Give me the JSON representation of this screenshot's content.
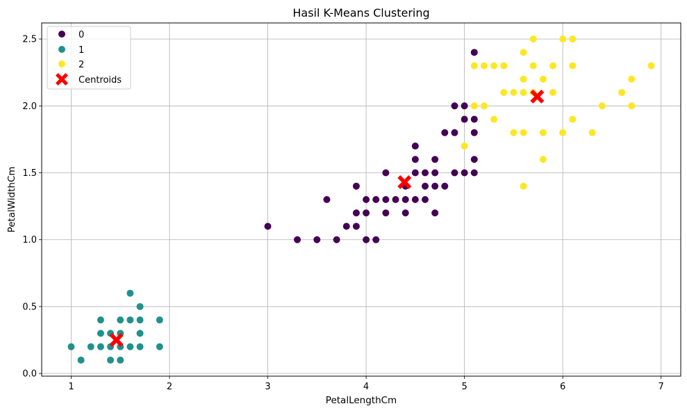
{
  "chart_data": {
    "type": "scatter",
    "title": "Hasil K-Means Clustering",
    "xlabel": "PetalLengthCm",
    "ylabel": "PetalWidthCm",
    "xlim": [
      0.7,
      7.2
    ],
    "ylim": [
      -0.02,
      2.62
    ],
    "xticks": [
      1,
      2,
      3,
      4,
      5,
      6,
      7
    ],
    "yticks": [
      0.0,
      0.5,
      1.0,
      1.5,
      2.0,
      2.5
    ],
    "grid": true,
    "legend_position": "top-left",
    "series": [
      {
        "name": "0",
        "color": "#440154",
        "points": [
          [
            3.0,
            1.1
          ],
          [
            3.3,
            1.0
          ],
          [
            3.5,
            1.0
          ],
          [
            3.6,
            1.3
          ],
          [
            3.7,
            1.0
          ],
          [
            3.8,
            1.1
          ],
          [
            3.9,
            1.1
          ],
          [
            3.9,
            1.2
          ],
          [
            3.9,
            1.4
          ],
          [
            4.0,
            1.0
          ],
          [
            4.0,
            1.2
          ],
          [
            4.0,
            1.3
          ],
          [
            4.1,
            1.0
          ],
          [
            4.1,
            1.3
          ],
          [
            4.2,
            1.2
          ],
          [
            4.2,
            1.3
          ],
          [
            4.2,
            1.5
          ],
          [
            4.3,
            1.3
          ],
          [
            4.4,
            1.2
          ],
          [
            4.4,
            1.3
          ],
          [
            4.4,
            1.4
          ],
          [
            4.5,
            1.3
          ],
          [
            4.5,
            1.5
          ],
          [
            4.5,
            1.6
          ],
          [
            4.5,
            1.7
          ],
          [
            4.6,
            1.3
          ],
          [
            4.6,
            1.4
          ],
          [
            4.6,
            1.5
          ],
          [
            4.7,
            1.2
          ],
          [
            4.7,
            1.4
          ],
          [
            4.7,
            1.5
          ],
          [
            4.7,
            1.6
          ],
          [
            4.8,
            1.4
          ],
          [
            4.8,
            1.8
          ],
          [
            4.9,
            1.5
          ],
          [
            4.9,
            1.8
          ],
          [
            4.9,
            2.0
          ],
          [
            5.0,
            1.5
          ],
          [
            5.0,
            1.9
          ],
          [
            5.0,
            2.0
          ],
          [
            5.1,
            1.5
          ],
          [
            5.1,
            1.6
          ],
          [
            5.1,
            1.8
          ],
          [
            5.1,
            1.9
          ],
          [
            5.1,
            2.4
          ]
        ]
      },
      {
        "name": "1",
        "color": "#21918c",
        "points": [
          [
            1.0,
            0.2
          ],
          [
            1.1,
            0.1
          ],
          [
            1.2,
            0.2
          ],
          [
            1.3,
            0.2
          ],
          [
            1.3,
            0.3
          ],
          [
            1.3,
            0.4
          ],
          [
            1.4,
            0.1
          ],
          [
            1.4,
            0.2
          ],
          [
            1.4,
            0.3
          ],
          [
            1.5,
            0.1
          ],
          [
            1.5,
            0.2
          ],
          [
            1.5,
            0.3
          ],
          [
            1.5,
            0.4
          ],
          [
            1.6,
            0.2
          ],
          [
            1.6,
            0.4
          ],
          [
            1.6,
            0.6
          ],
          [
            1.7,
            0.2
          ],
          [
            1.7,
            0.3
          ],
          [
            1.7,
            0.4
          ],
          [
            1.7,
            0.5
          ],
          [
            1.9,
            0.2
          ],
          [
            1.9,
            0.4
          ]
        ]
      },
      {
        "name": "2",
        "color": "#fde725",
        "points": [
          [
            5.0,
            1.7
          ],
          [
            5.1,
            2.0
          ],
          [
            5.1,
            2.3
          ],
          [
            5.2,
            2.0
          ],
          [
            5.2,
            2.3
          ],
          [
            5.3,
            1.9
          ],
          [
            5.3,
            2.3
          ],
          [
            5.4,
            2.1
          ],
          [
            5.4,
            2.3
          ],
          [
            5.5,
            1.8
          ],
          [
            5.5,
            2.1
          ],
          [
            5.6,
            1.4
          ],
          [
            5.6,
            1.8
          ],
          [
            5.6,
            2.1
          ],
          [
            5.6,
            2.2
          ],
          [
            5.6,
            2.4
          ],
          [
            5.7,
            2.1
          ],
          [
            5.7,
            2.3
          ],
          [
            5.7,
            2.5
          ],
          [
            5.8,
            1.6
          ],
          [
            5.8,
            1.8
          ],
          [
            5.8,
            2.2
          ],
          [
            5.9,
            2.1
          ],
          [
            5.9,
            2.3
          ],
          [
            6.0,
            1.8
          ],
          [
            6.0,
            2.5
          ],
          [
            6.1,
            1.9
          ],
          [
            6.1,
            2.3
          ],
          [
            6.1,
            2.5
          ],
          [
            6.3,
            1.8
          ],
          [
            6.4,
            2.0
          ],
          [
            6.6,
            2.1
          ],
          [
            6.7,
            2.0
          ],
          [
            6.7,
            2.2
          ],
          [
            6.9,
            2.3
          ]
        ]
      }
    ],
    "centroids": {
      "name": "Centroids",
      "color": "#ff0000",
      "marker": "X",
      "points": [
        [
          1.46,
          0.25
        ],
        [
          4.39,
          1.43
        ],
        [
          5.74,
          2.07
        ]
      ]
    }
  }
}
